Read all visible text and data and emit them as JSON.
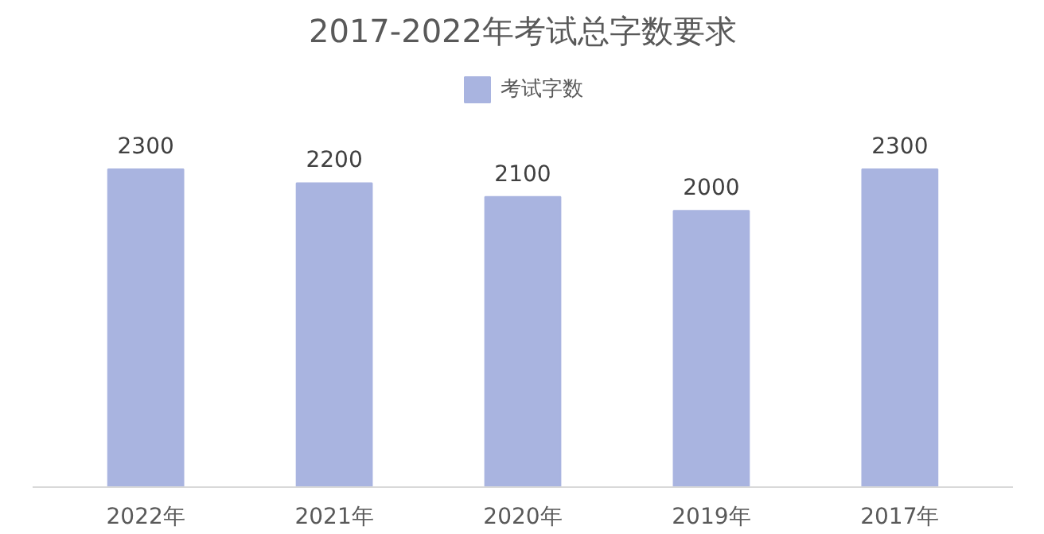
{
  "chart_data": {
    "type": "bar",
    "title": "2017-2022年考试总字数要求",
    "categories": [
      "2022年",
      "2021年",
      "2020年",
      "2019年",
      "2017年"
    ],
    "series": [
      {
        "name": "考试字数",
        "color": "#a9b4e0",
        "values": [
          2300,
          2200,
          2100,
          2000,
          2300
        ]
      }
    ],
    "data_labels": true,
    "legend": "top"
  }
}
